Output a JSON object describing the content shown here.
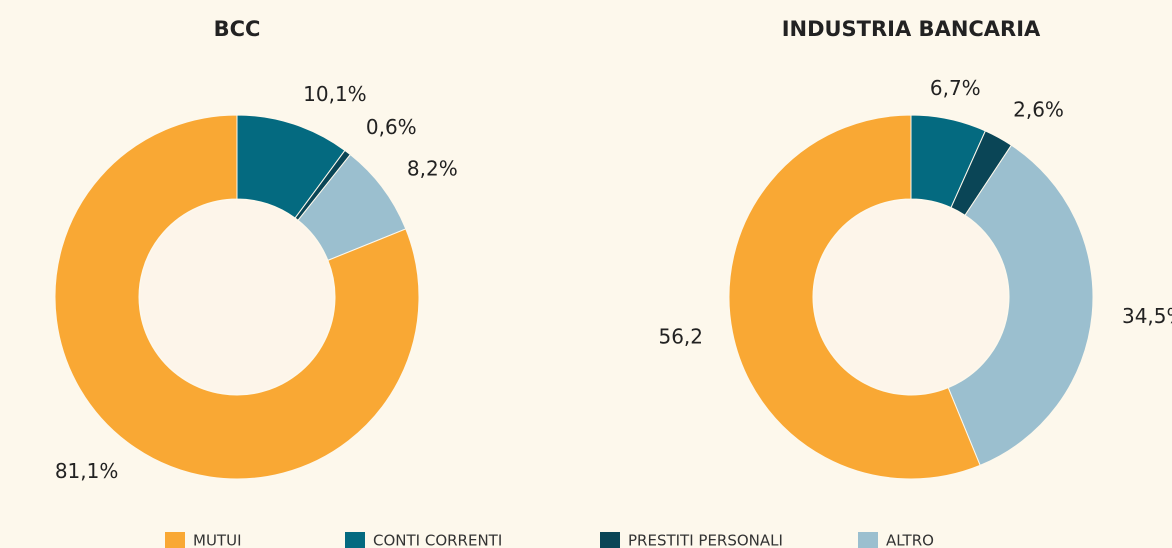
{
  "chart_data": [
    {
      "type": "pie",
      "title": "BCC",
      "values": [
        10.1,
        0.6,
        8.2,
        81.1
      ],
      "value_labels": [
        "10,1%",
        "0,6%",
        "8,2%",
        "81,1%"
      ],
      "colors": [
        "#046a80",
        "#0a4556",
        "#9bbfcf",
        "#f9a834"
      ]
    },
    {
      "type": "pie",
      "title": "INDUSTRIA BANCARIA",
      "values": [
        6.7,
        2.6,
        34.5,
        56.2
      ],
      "value_labels": [
        "6,7%",
        "2,6%",
        "34,5%",
        "56,2"
      ],
      "colors": [
        "#046a80",
        "#0a4556",
        "#9bbfcf",
        "#f9a834"
      ]
    }
  ],
  "legend": {
    "items": [
      {
        "name": "MUTUI",
        "color": "#f9a834"
      },
      {
        "name": "CONTI CORRENTI",
        "color": "#046a80"
      },
      {
        "name": "PRESTITI PERSONALI",
        "color": "#0a4556"
      },
      {
        "name": "ALTRO",
        "color": "#9bbfcf"
      }
    ]
  }
}
